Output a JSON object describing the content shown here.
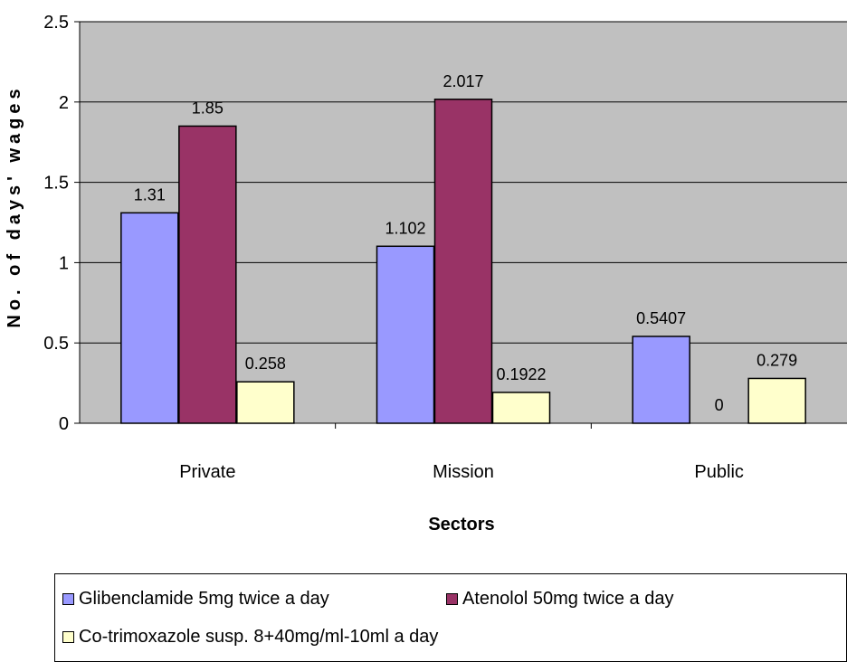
{
  "chart_data": {
    "type": "bar",
    "xlabel": "Sectors",
    "ylabel": "No. of days' wages",
    "ylim": [
      0,
      2.5
    ],
    "yticks": [
      "0",
      "0.5",
      "1",
      "1.5",
      "2",
      "2.5"
    ],
    "grid": true,
    "plot_background": "#c0c0c0",
    "legend_position": "bottom",
    "categories": [
      "Private",
      "Mission",
      "Public"
    ],
    "series": [
      {
        "name": "Glibenclamide 5mg twice a day",
        "color": "#9999ff",
        "values": [
          1.31,
          1.102,
          0.5407
        ],
        "labels": [
          "1.31",
          "1.102",
          "0.5407"
        ]
      },
      {
        "name": "Atenolol 50mg twice a day",
        "color": "#993366",
        "values": [
          1.85,
          2.017,
          0
        ],
        "labels": [
          "1.85",
          "2.017",
          "0"
        ]
      },
      {
        "name": "Co-trimoxazole susp. 8+40mg/ml-10ml a day",
        "color": "#ffffcc",
        "values": [
          0.258,
          0.1922,
          0.279
        ],
        "labels": [
          "0.258",
          "0.1922",
          "0.279"
        ]
      }
    ]
  }
}
